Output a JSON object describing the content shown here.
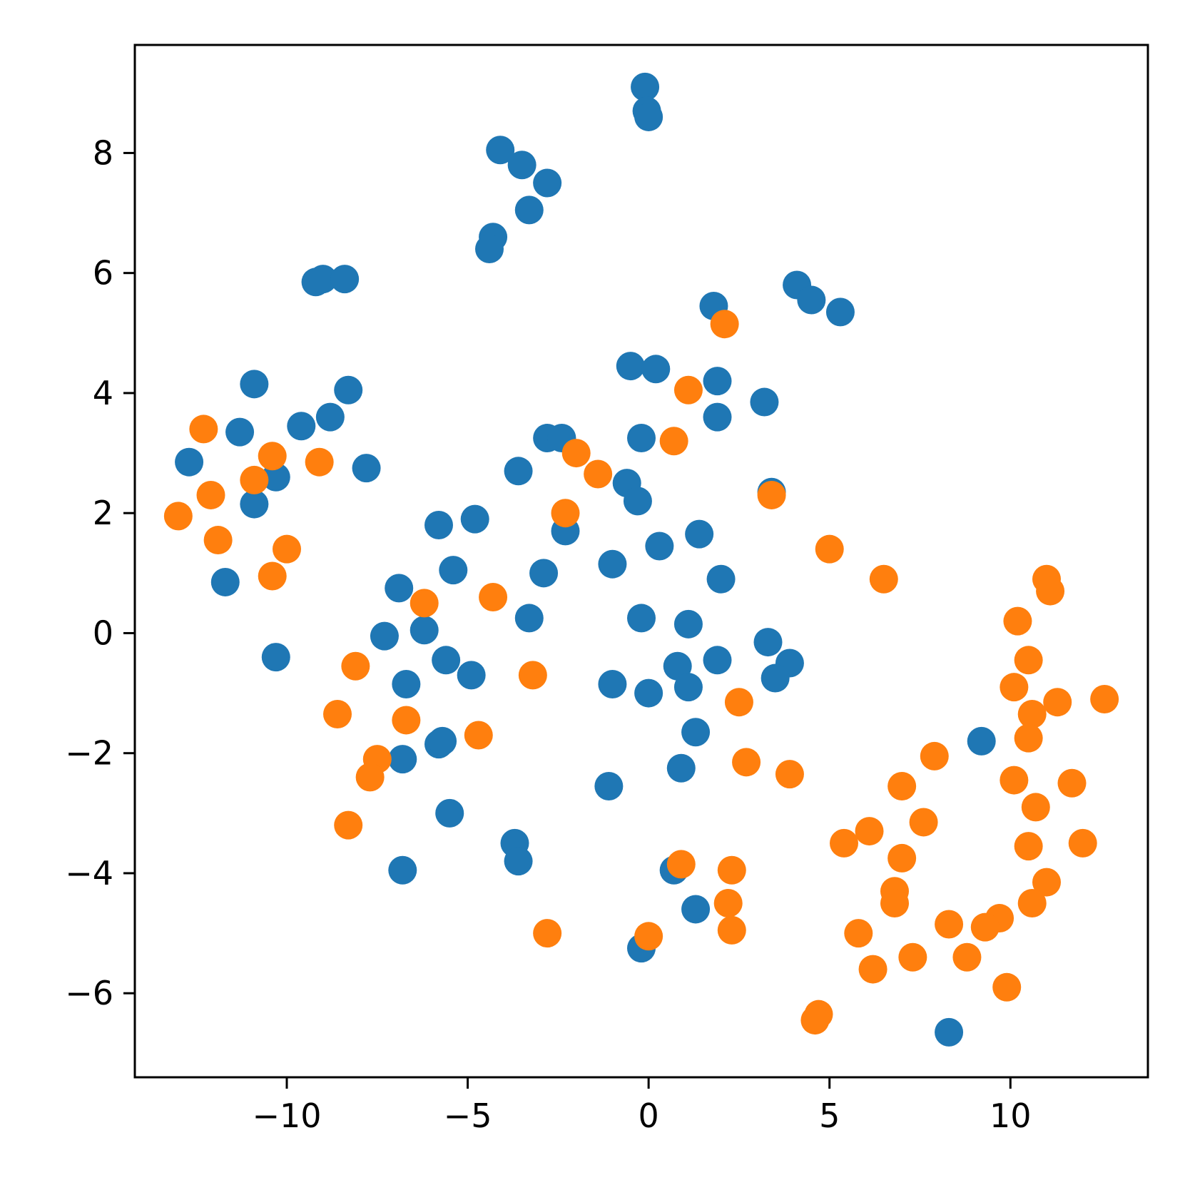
{
  "chart_data": {
    "type": "scatter",
    "title": "",
    "xlabel": "",
    "ylabel": "",
    "xlim": [
      -14.2,
      13.8
    ],
    "ylim": [
      -7.4,
      9.8
    ],
    "x_ticks": [
      -10,
      -5,
      0,
      5,
      10
    ],
    "x_tick_labels": [
      "−10",
      "−5",
      "0",
      "5",
      "10"
    ],
    "y_ticks": [
      -6,
      -4,
      -2,
      0,
      2,
      4,
      6,
      8
    ],
    "y_tick_labels": [
      "−6",
      "−4",
      "−2",
      "0",
      "2",
      "4",
      "6",
      "8"
    ],
    "grid": false,
    "legend": "none",
    "series": [
      {
        "color": "#1f77b4",
        "points": [
          [
            -0.1,
            9.1
          ],
          [
            -0.05,
            8.7
          ],
          [
            0.0,
            8.6
          ],
          [
            -4.1,
            8.05
          ],
          [
            -3.5,
            7.8
          ],
          [
            -2.8,
            7.5
          ],
          [
            -3.3,
            7.05
          ],
          [
            -4.3,
            6.6
          ],
          [
            -4.4,
            6.4
          ],
          [
            -9.2,
            5.85
          ],
          [
            -9.0,
            5.9
          ],
          [
            -8.4,
            5.9
          ],
          [
            4.1,
            5.8
          ],
          [
            4.5,
            5.55
          ],
          [
            5.3,
            5.35
          ],
          [
            1.8,
            5.45
          ],
          [
            -0.5,
            4.45
          ],
          [
            0.2,
            4.4
          ],
          [
            1.9,
            4.2
          ],
          [
            1.9,
            3.6
          ],
          [
            3.2,
            3.85
          ],
          [
            -10.9,
            4.15
          ],
          [
            -8.3,
            4.05
          ],
          [
            -8.8,
            3.6
          ],
          [
            -9.6,
            3.45
          ],
          [
            -11.3,
            3.35
          ],
          [
            -12.7,
            2.85
          ],
          [
            -7.8,
            2.75
          ],
          [
            -10.3,
            2.6
          ],
          [
            -10.9,
            2.15
          ],
          [
            -11.7,
            0.85
          ],
          [
            -2.8,
            3.25
          ],
          [
            -2.4,
            3.25
          ],
          [
            -0.2,
            3.25
          ],
          [
            -3.6,
            2.7
          ],
          [
            -0.6,
            2.5
          ],
          [
            -0.3,
            2.2
          ],
          [
            3.4,
            2.35
          ],
          [
            -5.8,
            1.8
          ],
          [
            -4.8,
            1.9
          ],
          [
            -2.3,
            1.7
          ],
          [
            1.4,
            1.65
          ],
          [
            0.3,
            1.45
          ],
          [
            -1.0,
            1.15
          ],
          [
            -5.4,
            1.05
          ],
          [
            -2.9,
            1.0
          ],
          [
            2.0,
            0.9
          ],
          [
            -6.9,
            0.75
          ],
          [
            -3.3,
            0.25
          ],
          [
            -0.2,
            0.25
          ],
          [
            1.1,
            0.15
          ],
          [
            -6.2,
            0.05
          ],
          [
            -7.3,
            -0.05
          ],
          [
            3.3,
            -0.15
          ],
          [
            -10.3,
            -0.4
          ],
          [
            -5.6,
            -0.45
          ],
          [
            1.9,
            -0.45
          ],
          [
            3.9,
            -0.5
          ],
          [
            0.8,
            -0.55
          ],
          [
            -4.9,
            -0.7
          ],
          [
            3.5,
            -0.75
          ],
          [
            -1.0,
            -0.85
          ],
          [
            -6.7,
            -0.85
          ],
          [
            1.1,
            -0.9
          ],
          [
            0.0,
            -1.0
          ],
          [
            1.3,
            -1.65
          ],
          [
            9.2,
            -1.8
          ],
          [
            -5.8,
            -1.85
          ],
          [
            -5.7,
            -1.8
          ],
          [
            -6.8,
            -2.1
          ],
          [
            0.9,
            -2.25
          ],
          [
            -1.1,
            -2.55
          ],
          [
            -5.5,
            -3.0
          ],
          [
            -3.7,
            -3.5
          ],
          [
            -3.6,
            -3.8
          ],
          [
            -6.8,
            -3.95
          ],
          [
            0.7,
            -3.95
          ],
          [
            1.3,
            -4.6
          ],
          [
            -0.2,
            -5.25
          ],
          [
            8.3,
            -6.65
          ]
        ]
      },
      {
        "color": "#ff7f0e",
        "points": [
          [
            2.1,
            5.15
          ],
          [
            1.1,
            4.05
          ],
          [
            0.7,
            3.2
          ],
          [
            -12.3,
            3.4
          ],
          [
            -10.4,
            2.95
          ],
          [
            -9.1,
            2.85
          ],
          [
            -10.9,
            2.55
          ],
          [
            -12.1,
            2.3
          ],
          [
            -13.0,
            1.95
          ],
          [
            -11.9,
            1.55
          ],
          [
            -10.0,
            1.4
          ],
          [
            -10.4,
            0.95
          ],
          [
            -2.0,
            3.0
          ],
          [
            -1.4,
            2.65
          ],
          [
            3.4,
            2.3
          ],
          [
            -2.3,
            2.0
          ],
          [
            5.0,
            1.4
          ],
          [
            6.5,
            0.9
          ],
          [
            11.0,
            0.9
          ],
          [
            11.1,
            0.7
          ],
          [
            -4.3,
            0.6
          ],
          [
            -6.2,
            0.5
          ],
          [
            10.2,
            0.2
          ],
          [
            -8.1,
            -0.55
          ],
          [
            10.5,
            -0.45
          ],
          [
            -3.2,
            -0.7
          ],
          [
            10.1,
            -0.9
          ],
          [
            12.6,
            -1.1
          ],
          [
            11.3,
            -1.15
          ],
          [
            2.5,
            -1.15
          ],
          [
            -8.6,
            -1.35
          ],
          [
            10.6,
            -1.35
          ],
          [
            -6.7,
            -1.45
          ],
          [
            -4.7,
            -1.7
          ],
          [
            10.5,
            -1.75
          ],
          [
            -7.5,
            -2.1
          ],
          [
            7.9,
            -2.05
          ],
          [
            2.7,
            -2.15
          ],
          [
            -7.7,
            -2.4
          ],
          [
            3.9,
            -2.35
          ],
          [
            10.1,
            -2.45
          ],
          [
            11.7,
            -2.5
          ],
          [
            7.0,
            -2.55
          ],
          [
            10.7,
            -2.9
          ],
          [
            7.6,
            -3.15
          ],
          [
            -8.3,
            -3.2
          ],
          [
            6.1,
            -3.3
          ],
          [
            5.4,
            -3.5
          ],
          [
            12.0,
            -3.5
          ],
          [
            10.5,
            -3.55
          ],
          [
            7.0,
            -3.75
          ],
          [
            0.9,
            -3.85
          ],
          [
            2.3,
            -3.95
          ],
          [
            11.0,
            -4.15
          ],
          [
            6.8,
            -4.3
          ],
          [
            6.8,
            -4.5
          ],
          [
            2.2,
            -4.5
          ],
          [
            10.6,
            -4.5
          ],
          [
            9.7,
            -4.75
          ],
          [
            8.3,
            -4.85
          ],
          [
            9.3,
            -4.9
          ],
          [
            -2.8,
            -5.0
          ],
          [
            5.8,
            -5.0
          ],
          [
            0.0,
            -5.05
          ],
          [
            2.3,
            -4.95
          ],
          [
            7.3,
            -5.4
          ],
          [
            8.8,
            -5.4
          ],
          [
            6.2,
            -5.6
          ],
          [
            9.9,
            -5.9
          ],
          [
            4.7,
            -6.35
          ],
          [
            4.6,
            -6.45
          ]
        ]
      }
    ]
  }
}
